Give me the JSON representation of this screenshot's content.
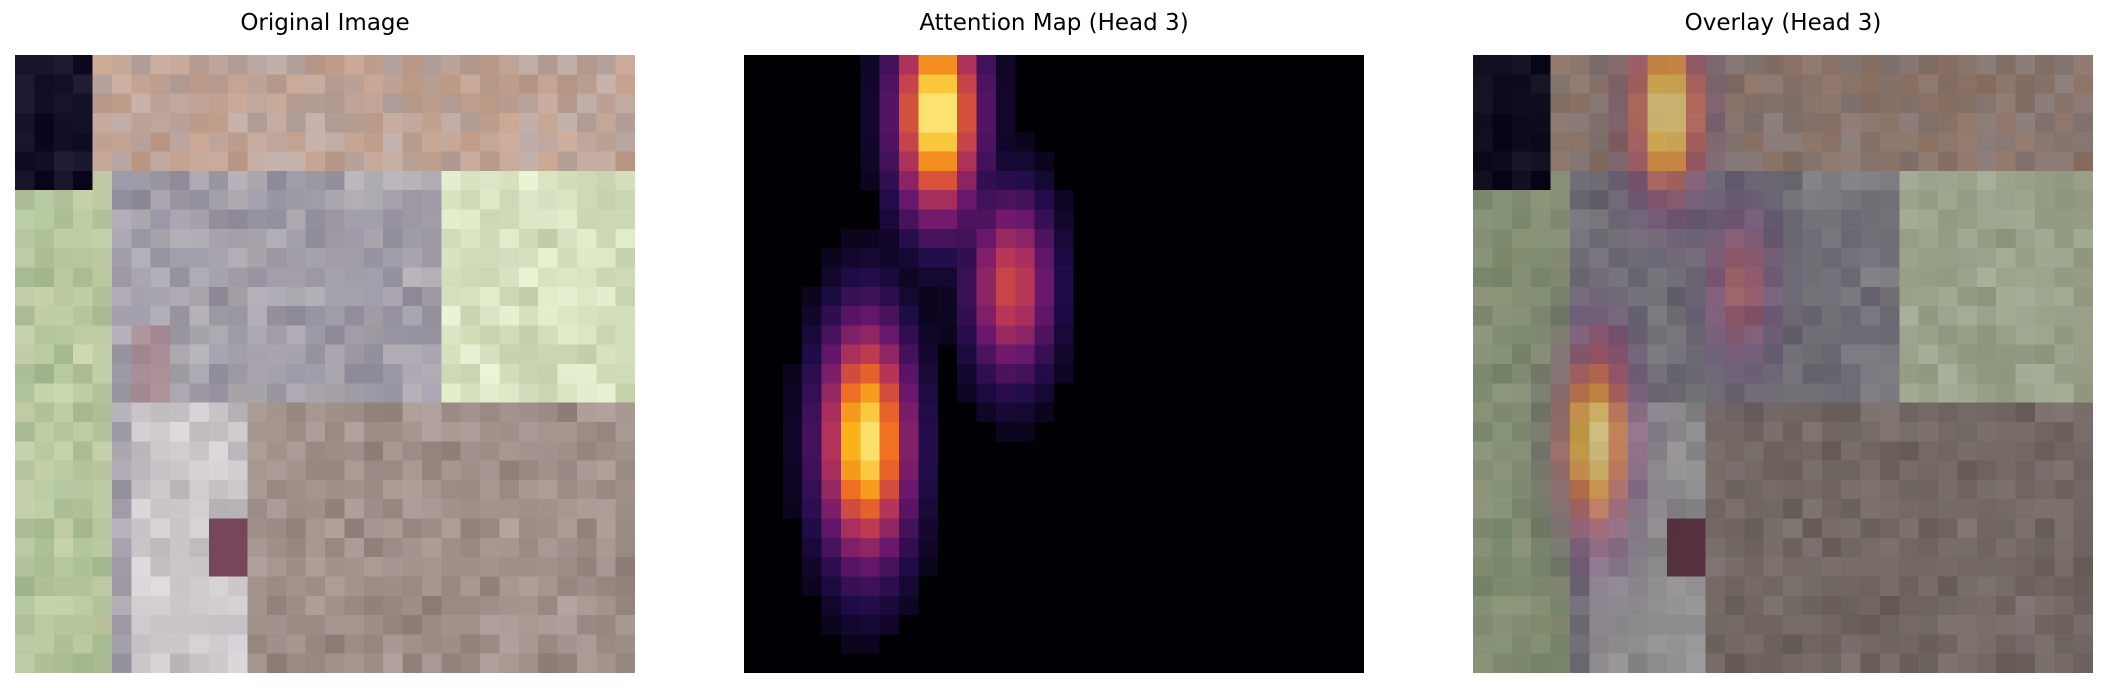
{
  "panels": [
    {
      "title": "Original Image",
      "kind": "photo"
    },
    {
      "title": "Attention Map (Head 3)",
      "kind": "attention",
      "colormap": "inferno"
    },
    {
      "title": "Overlay (Head 3)",
      "kind": "overlay",
      "colormap": "inferno"
    }
  ],
  "colors": {
    "background": "#ffffff",
    "attention_low": "#000004",
    "attention_mid": "#b63458",
    "attention_high": "#fcffa4"
  }
}
